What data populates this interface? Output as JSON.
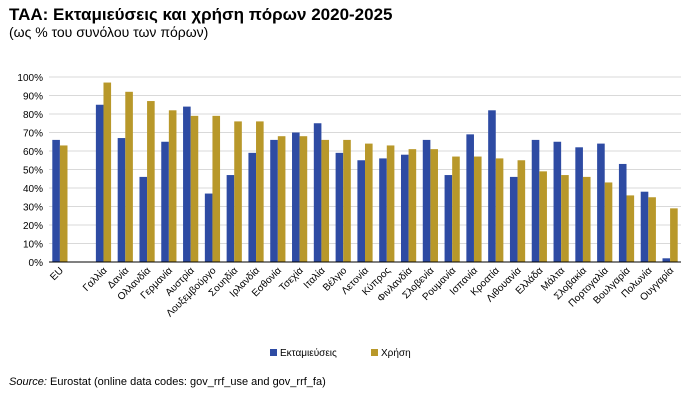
{
  "header": {
    "title": "ΤΑΑ: Εκταμιεύσεις και χρήση πόρων 2020-2025",
    "subtitle": "(ως % του συνόλου των πόρων)"
  },
  "footer": {
    "source_label": "Source:",
    "source_text": "Eurostat (online data codes: gov_rrf_use and gov_rrf_fa)"
  },
  "colors": {
    "disbursements": "#2E4BA3",
    "usage": "#B8982A",
    "grid": "#D9D9D9",
    "axis": "#000000"
  },
  "chart_data": {
    "type": "bar",
    "title": "ΤΑΑ: Εκταμιεύσεις και χρήση πόρων 2020-2025",
    "subtitle": "(ως % του συνόλου των πόρων)",
    "xlabel": "",
    "ylabel": "",
    "ylim": [
      0,
      100
    ],
    "yticks": [
      0,
      10,
      20,
      30,
      40,
      50,
      60,
      70,
      80,
      90,
      100
    ],
    "ytick_labels": [
      "0%",
      "10%",
      "20%",
      "30%",
      "40%",
      "50%",
      "60%",
      "70%",
      "80%",
      "90%",
      "100%"
    ],
    "grid": true,
    "legend_position": "bottom",
    "categories": [
      "EU",
      "",
      "Γαλλία",
      "Δανία",
      "Ολλανδία",
      "Γερμανία",
      "Αυστρία",
      "Λουξεμβούργο",
      "Σουηδία",
      "Ιρλανδία",
      "Εσθονία",
      "Τσεχία",
      "Ιταλία",
      "Βέλγιο",
      "Λετονία",
      "Κύπρος",
      "Φινλανδία",
      "Σλοβενία",
      "Ρουμανία",
      "Ισπανία",
      "Κροατία",
      "Λιθουανία",
      "Ελλάδα",
      "Μάλτα",
      "Σλοβακία",
      "Πορτογαλία",
      "Βουλγαρία",
      "Πολωνία",
      "Ουγγαρία"
    ],
    "series": [
      {
        "name": "Εκταμιεύσεις",
        "color": "#2E4BA3",
        "values": [
          66,
          null,
          85,
          67,
          46,
          65,
          84,
          37,
          47,
          59,
          66,
          70,
          75,
          59,
          55,
          56,
          58,
          66,
          47,
          69,
          82,
          46,
          66,
          65,
          62,
          64,
          53,
          38,
          2
        ]
      },
      {
        "name": "Χρήση",
        "color": "#B8982A",
        "values": [
          63,
          null,
          97,
          92,
          87,
          82,
          79,
          79,
          76,
          76,
          68,
          68,
          66,
          66,
          64,
          63,
          61,
          61,
          57,
          57,
          56,
          55,
          49,
          47,
          46,
          43,
          36,
          35,
          29
        ]
      }
    ]
  }
}
